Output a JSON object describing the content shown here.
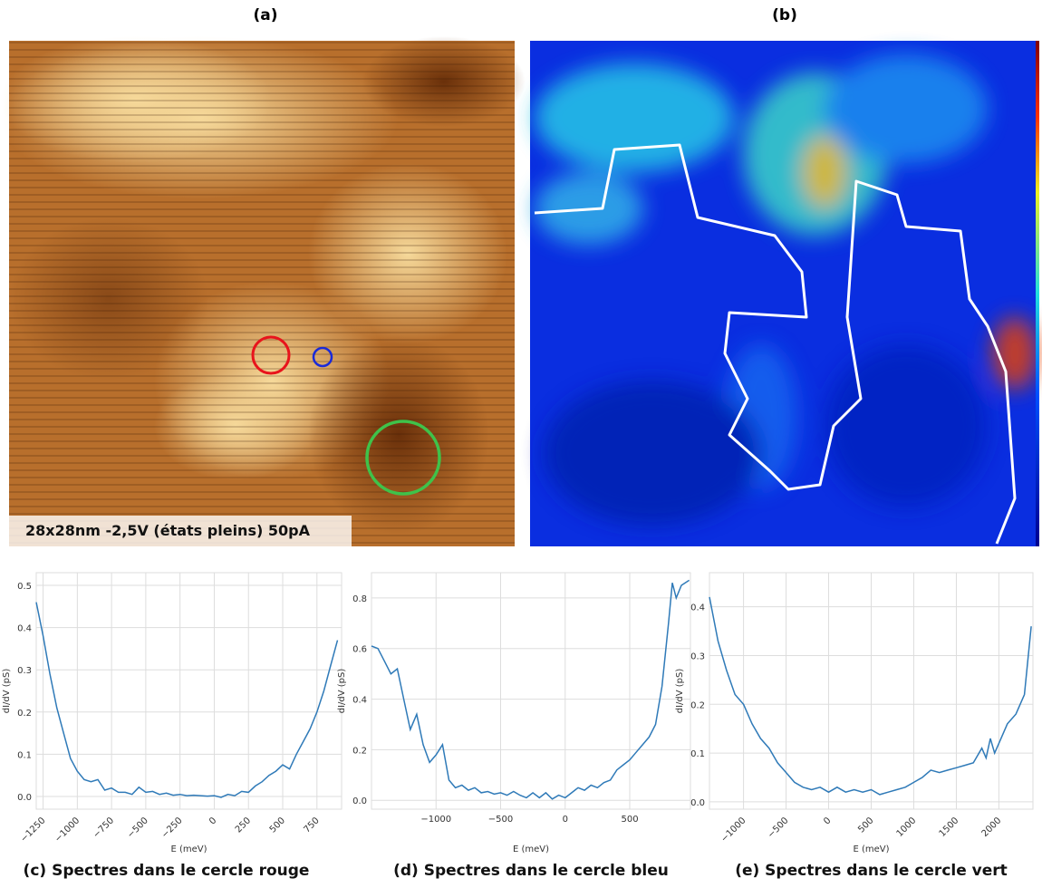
{
  "panels": {
    "a": {
      "label": "(a)",
      "caption": "28x28nm  -2,5V (états pleins)  50pA"
    },
    "b": {
      "label": "(b)"
    }
  },
  "chart_data": [
    {
      "type": "line",
      "title": "(c) Spectres dans le cercle rouge",
      "xlabel": "E (meV)",
      "ylabel": "dI/dV (pS)",
      "color": "#2f7ab8",
      "grid": true,
      "xtick_rotation": 45,
      "x": [
        -1300,
        -1250,
        -1200,
        -1150,
        -1100,
        -1050,
        -1000,
        -950,
        -900,
        -850,
        -800,
        -750,
        -700,
        -650,
        -600,
        -550,
        -500,
        -450,
        -400,
        -350,
        -300,
        -250,
        -200,
        -150,
        -100,
        -50,
        0,
        50,
        100,
        150,
        200,
        250,
        300,
        350,
        400,
        450,
        500,
        550,
        600,
        650,
        700,
        750,
        800,
        850,
        900
      ],
      "values": [
        0.46,
        0.38,
        0.29,
        0.21,
        0.15,
        0.09,
        0.06,
        0.04,
        0.035,
        0.04,
        0.015,
        0.02,
        0.01,
        0.01,
        0.005,
        0.022,
        0.01,
        0.012,
        0.005,
        0.008,
        0.003,
        0.005,
        0.002,
        0.003,
        0.002,
        0.001,
        0.002,
        -0.002,
        0.005,
        0.002,
        0.012,
        0.01,
        0.025,
        0.035,
        0.05,
        0.06,
        0.075,
        0.065,
        0.1,
        0.13,
        0.16,
        0.2,
        0.25,
        0.31,
        0.37
      ],
      "xlim": [
        -1300,
        930
      ],
      "ylim": [
        -0.03,
        0.53
      ],
      "xticks": [
        {
          "value": -1250,
          "label": "−1250"
        },
        {
          "value": -1000,
          "label": "−1000"
        },
        {
          "value": -750,
          "label": "−750"
        },
        {
          "value": -500,
          "label": "−500"
        },
        {
          "value": -250,
          "label": "−250"
        },
        0,
        250,
        500,
        750
      ],
      "yticks": [
        {
          "value": 0,
          "label": "0.0"
        },
        0.1,
        0.2,
        0.3,
        0.4,
        0.5
      ]
    },
    {
      "type": "line",
      "title": "(d) Spectres dans le cercle bleu",
      "xlabel": "E (meV)",
      "ylabel": "dI/dV (pS)",
      "color": "#2f7ab8",
      "grid": true,
      "xtick_rotation": 0,
      "x": [
        -1500,
        -1450,
        -1400,
        -1350,
        -1300,
        -1250,
        -1200,
        -1150,
        -1100,
        -1050,
        -1000,
        -950,
        -900,
        -850,
        -800,
        -750,
        -700,
        -650,
        -600,
        -550,
        -500,
        -450,
        -400,
        -350,
        -300,
        -250,
        -200,
        -150,
        -100,
        -50,
        0,
        50,
        100,
        150,
        200,
        250,
        300,
        350,
        400,
        450,
        500,
        550,
        600,
        650,
        700,
        750,
        800,
        830,
        860,
        900,
        960
      ],
      "values": [
        0.61,
        0.6,
        0.55,
        0.5,
        0.52,
        0.4,
        0.28,
        0.34,
        0.22,
        0.15,
        0.18,
        0.22,
        0.08,
        0.05,
        0.06,
        0.04,
        0.05,
        0.03,
        0.035,
        0.025,
        0.03,
        0.02,
        0.035,
        0.02,
        0.01,
        0.03,
        0.01,
        0.03,
        0.005,
        0.02,
        0.01,
        0.03,
        0.05,
        0.04,
        0.06,
        0.05,
        0.07,
        0.08,
        0.12,
        0.14,
        0.16,
        0.19,
        0.22,
        0.25,
        0.3,
        0.45,
        0.7,
        0.86,
        0.8,
        0.85,
        0.87
      ],
      "xlim": [
        -1500,
        970
      ],
      "ylim": [
        -0.035,
        0.9
      ],
      "xticks": [
        {
          "value": -1000,
          "label": "−1000"
        },
        {
          "value": -500,
          "label": "−500"
        },
        0,
        500
      ],
      "yticks": [
        {
          "value": 0,
          "label": "0.0"
        },
        0.2,
        0.4,
        0.6,
        0.8
      ]
    },
    {
      "type": "line",
      "title": "(e) Spectres dans le cercle vert",
      "xlabel": "E (meV)",
      "ylabel": "dI/dV (pS)",
      "color": "#2f7ab8",
      "grid": true,
      "xtick_rotation": 45,
      "x": [
        -1400,
        -1300,
        -1200,
        -1100,
        -1000,
        -900,
        -800,
        -700,
        -600,
        -500,
        -400,
        -300,
        -200,
        -100,
        0,
        100,
        200,
        300,
        400,
        500,
        600,
        700,
        800,
        900,
        1000,
        1100,
        1200,
        1300,
        1400,
        1500,
        1600,
        1700,
        1800,
        1850,
        1900,
        1950,
        2000,
        2100,
        2200,
        2300,
        2380
      ],
      "values": [
        0.42,
        0.33,
        0.27,
        0.22,
        0.2,
        0.16,
        0.13,
        0.11,
        0.08,
        0.06,
        0.04,
        0.03,
        0.025,
        0.03,
        0.02,
        0.03,
        0.02,
        0.025,
        0.02,
        0.025,
        0.015,
        0.02,
        0.025,
        0.03,
        0.04,
        0.05,
        0.065,
        0.06,
        0.065,
        0.07,
        0.075,
        0.08,
        0.11,
        0.09,
        0.13,
        0.1,
        0.12,
        0.16,
        0.18,
        0.22,
        0.36
      ],
      "xlim": [
        -1400,
        2400
      ],
      "ylim": [
        -0.015,
        0.47
      ],
      "xticks": [
        {
          "value": -1000,
          "label": "−1000"
        },
        {
          "value": -500,
          "label": "−500"
        },
        0,
        500,
        1000,
        1500,
        2000
      ],
      "yticks": [
        {
          "value": 0,
          "label": "0.0"
        },
        0.1,
        0.2,
        0.3,
        0.4
      ]
    }
  ]
}
